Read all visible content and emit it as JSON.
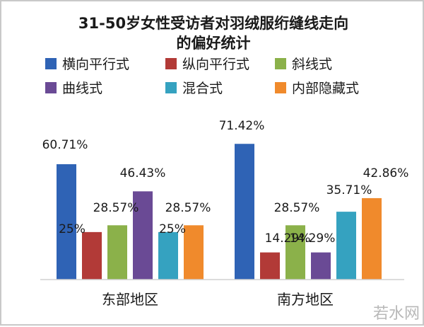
{
  "chart_data": {
    "type": "bar",
    "title": "31-50岁女性受访者对羽绒服绗缝线走向的偏好统计",
    "title_lines": [
      "31-50岁女性受访者对羽绒服绗缝线走向",
      "的偏好统计"
    ],
    "categories": [
      "东部地区",
      "南方地区"
    ],
    "series": [
      {
        "name": "横向平行式",
        "color": "#2f63b5",
        "values": [
          60.71,
          71.42
        ],
        "labels": [
          "60.71%",
          "71.42%"
        ]
      },
      {
        "name": "纵向平行式",
        "color": "#b23a37",
        "values": [
          25,
          14.29
        ],
        "labels": [
          "25%",
          "14.29%"
        ]
      },
      {
        "name": "斜线式",
        "color": "#8bb14a",
        "values": [
          28.57,
          28.57
        ],
        "labels": [
          "28.57%",
          "28.57%"
        ]
      },
      {
        "name": "曲线式",
        "color": "#6a4a95",
        "values": [
          46.43,
          14.29
        ],
        "labels": [
          "46.43%",
          "14.29%"
        ]
      },
      {
        "name": "混合式",
        "color": "#35a2c0",
        "values": [
          25,
          35.71
        ],
        "labels": [
          "25%",
          "35.71%"
        ]
      },
      {
        "name": "内部隐藏式",
        "color": "#f08a2c",
        "values": [
          28.57,
          42.86
        ],
        "labels": [
          "28.57%",
          "42.86%"
        ]
      }
    ],
    "ylim": [
      0,
      100
    ],
    "grid": false,
    "legend": "top"
  },
  "watermark": "若水网"
}
